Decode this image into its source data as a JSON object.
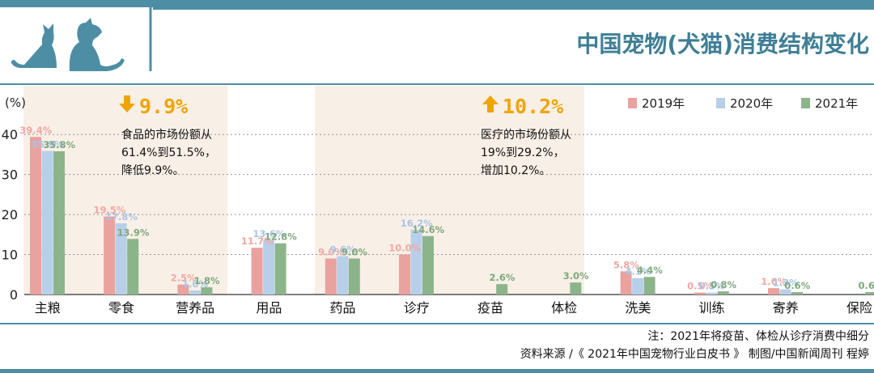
{
  "header": {
    "title": "中国宠物(犬猫)消费结构变化",
    "accent_color": "#4e8ea5",
    "title_color": "#3f7e96",
    "icon": "cat-dog-silhouette-icon"
  },
  "chart_data": {
    "type": "bar",
    "ylabel": "(%)",
    "ylim": [
      0,
      45
    ],
    "yticks": [
      0,
      10,
      20,
      30,
      40
    ],
    "grid": true,
    "legend_position": "top-right",
    "categories": [
      "主粮",
      "零食",
      "营养品",
      "用品",
      "药品",
      "诊疗",
      "疫苗",
      "体检",
      "洗美",
      "训练",
      "寄养",
      "保险"
    ],
    "series": [
      {
        "name": "2019年",
        "color": "#eaa29f",
        "values": [
          39.4,
          19.5,
          2.5,
          11.7,
          9.0,
          10.0,
          null,
          null,
          5.8,
          0.5,
          1.6,
          null
        ]
      },
      {
        "name": "2020年",
        "color": "#b8cfe9",
        "values": [
          35.9,
          17.8,
          1.0,
          13.6,
          9.6,
          16.2,
          null,
          null,
          4.1,
          0.5,
          1.3,
          null
        ]
      },
      {
        "name": "2021年",
        "color": "#8cb48a",
        "values": [
          35.8,
          13.9,
          1.8,
          12.8,
          9.0,
          14.6,
          2.6,
          3.0,
          4.4,
          0.8,
          0.6,
          0.6
        ]
      }
    ],
    "labels": [
      [
        "39.4%",
        "35.9%",
        "35.8%"
      ],
      [
        "19.5%",
        "17.8%",
        "13.9%"
      ],
      [
        "2.5%",
        "1.0%",
        "1.8%"
      ],
      [
        "11.7%",
        "13.6%",
        "12.8%"
      ],
      [
        "9.0%",
        "9.6%",
        "9.0%"
      ],
      [
        "10.0%",
        "16.2%",
        "14.6%"
      ],
      [
        "",
        "",
        "2.6%"
      ],
      [
        "",
        "",
        "3.0%"
      ],
      [
        "5.8%",
        "4.1%",
        "4.4%"
      ],
      [
        "0.5%",
        "0.5%",
        "0.8%"
      ],
      [
        "1.6%",
        "1.3%",
        "0.6%"
      ],
      [
        "",
        "",
        "0.6%"
      ]
    ],
    "highlight_color": "#f8efe6",
    "annotations": [
      {
        "direction": "down",
        "arrow_color": "#f0a400",
        "headline": "9.9%",
        "text": [
          "食品的市场份额从",
          "61.4%到51.5%，",
          "降低9.9%。"
        ]
      },
      {
        "direction": "up",
        "arrow_color": "#f0a400",
        "headline": "10.2%",
        "text": [
          "医疗的市场份额从",
          "19%到29.2%，",
          "增加10.2%。"
        ]
      }
    ]
  },
  "footer": {
    "note": "注：2021年将疫苗、体检从诊疗消费中细分",
    "source": "资料来源 /《 2021年中国宠物行业白皮书 》 制图/中国新闻周刊 程婷"
  }
}
